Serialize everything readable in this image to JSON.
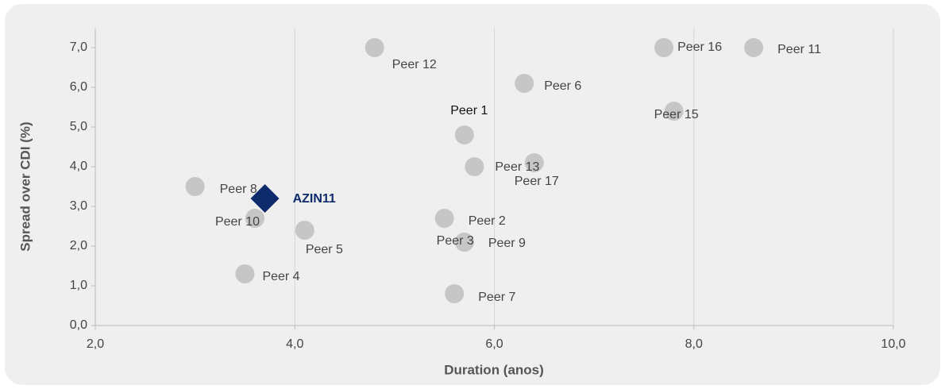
{
  "chart_data": {
    "type": "scatter",
    "xlabel": "Duration (anos)",
    "ylabel": "Spread over CDI (%)",
    "xlim": [
      2,
      10
    ],
    "ylim": [
      0,
      7.5
    ],
    "xticks": [
      {
        "value": 2,
        "label": "2,0"
      },
      {
        "value": 4,
        "label": "4,0"
      },
      {
        "value": 6,
        "label": "6,0"
      },
      {
        "value": 8,
        "label": "8,0"
      },
      {
        "value": 10,
        "label": "10,0"
      }
    ],
    "yticks": [
      {
        "value": 0,
        "label": "0,0"
      },
      {
        "value": 1,
        "label": "1,0"
      },
      {
        "value": 2,
        "label": "2,0"
      },
      {
        "value": 3,
        "label": "3,0"
      },
      {
        "value": 4,
        "label": "4,0"
      },
      {
        "value": 5,
        "label": "5,0"
      },
      {
        "value": 6,
        "label": "6,0"
      },
      {
        "value": 7,
        "label": "7,0"
      }
    ],
    "grid": "x",
    "color": "#c6c6c6",
    "points": [
      {
        "label": "Peer 12",
        "x": 4.8,
        "y": 7.0
      },
      {
        "label": "Peer 16",
        "x": 7.7,
        "y": 7.0
      },
      {
        "label": "Peer 11",
        "x": 8.6,
        "y": 7.0
      },
      {
        "label": "Peer 6",
        "x": 6.3,
        "y": 6.1
      },
      {
        "label": "Peer 15",
        "x": 7.8,
        "y": 5.4
      },
      {
        "label": "Peer 1",
        "x": 5.7,
        "y": 4.8
      },
      {
        "label": "Peer 13",
        "x": 5.8,
        "y": 4.0
      },
      {
        "label": "Peer 17",
        "x": 6.4,
        "y": 4.1
      },
      {
        "label": "Peer 8",
        "x": 3.0,
        "y": 3.5
      },
      {
        "label": "Peer 10",
        "x": 3.6,
        "y": 2.7
      },
      {
        "label": "Peer 5",
        "x": 4.1,
        "y": 2.4
      },
      {
        "label": "Peer 2",
        "x": 5.5,
        "y": 2.7
      },
      {
        "label": "Peer 3",
        "x": 5.7,
        "y": 2.1
      },
      {
        "label": "Peer 9",
        "x": 5.7,
        "y": 2.1
      },
      {
        "label": "Peer 4",
        "x": 3.5,
        "y": 1.3
      },
      {
        "label": "Peer 7",
        "x": 5.6,
        "y": 0.8
      }
    ],
    "highlight": {
      "label": "AZIN11",
      "x": 3.7,
      "y": 3.2,
      "color": "#0d2a6b"
    }
  }
}
